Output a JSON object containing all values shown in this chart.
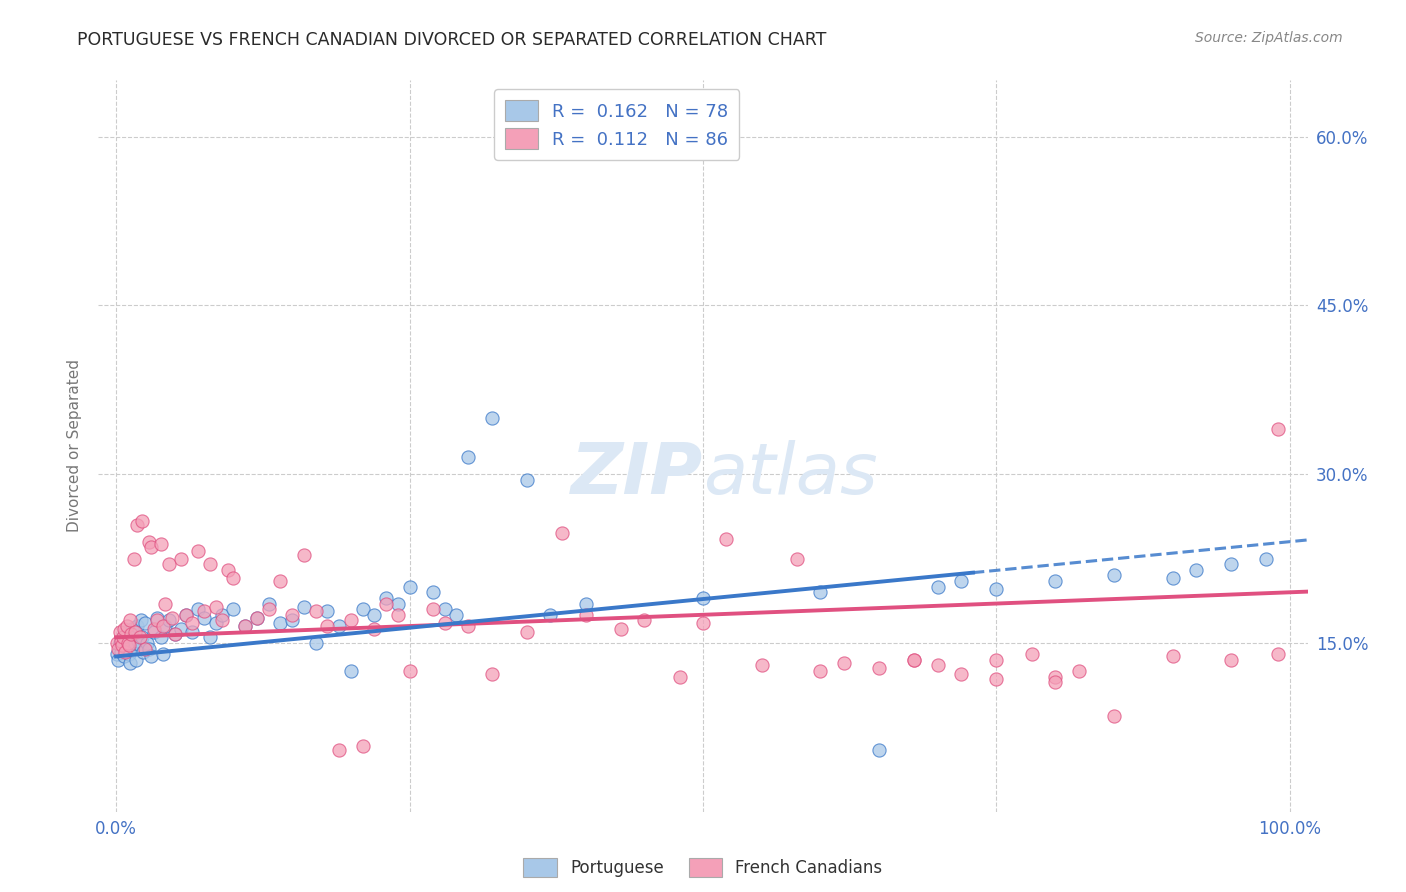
{
  "title": "PORTUGUESE VS FRENCH CANADIAN DIVORCED OR SEPARATED CORRELATION CHART",
  "source": "Source: ZipAtlas.com",
  "ylabel_label": "Divorced or Separated",
  "legend_label1": "Portuguese",
  "legend_label2": "French Canadians",
  "r1": 0.162,
  "n1": 78,
  "r2": 0.112,
  "n2": 86,
  "blue_color": "#a8c8e8",
  "pink_color": "#f4a0b8",
  "blue_line_color": "#3a78c9",
  "pink_line_color": "#e05080",
  "axis_label_color": "#4472c4",
  "watermark_color": "#dce8f5",
  "background_color": "#ffffff",
  "grid_color": "#cccccc",
  "blue_x": [
    0.1,
    0.2,
    0.3,
    0.4,
    0.5,
    0.6,
    0.7,
    0.8,
    0.9,
    1.0,
    1.1,
    1.2,
    1.3,
    1.4,
    1.5,
    1.6,
    1.7,
    1.8,
    1.9,
    2.0,
    2.1,
    2.2,
    2.3,
    2.5,
    2.6,
    2.8,
    3.0,
    3.2,
    3.5,
    3.8,
    4.0,
    4.2,
    4.5,
    5.0,
    5.5,
    6.0,
    6.5,
    7.0,
    7.5,
    8.0,
    8.5,
    9.0,
    10.0,
    11.0,
    12.0,
    13.0,
    14.0,
    15.0,
    16.0,
    17.0,
    18.0,
    19.0,
    20.0,
    21.0,
    22.0,
    23.0,
    24.0,
    25.0,
    27.0,
    28.0,
    29.0,
    30.0,
    32.0,
    35.0,
    37.0,
    40.0,
    50.0,
    60.0,
    65.0,
    70.0,
    72.0,
    75.0,
    80.0,
    85.0,
    90.0,
    92.0,
    95.0,
    98.0
  ],
  "blue_y": [
    14.0,
    13.5,
    15.0,
    14.2,
    14.8,
    15.5,
    13.8,
    16.0,
    14.5,
    15.2,
    14.0,
    13.2,
    15.8,
    16.2,
    14.5,
    15.0,
    13.5,
    16.5,
    15.2,
    14.8,
    17.0,
    15.5,
    14.2,
    16.8,
    15.0,
    14.5,
    13.8,
    16.0,
    17.2,
    15.5,
    14.0,
    16.5,
    17.0,
    15.8,
    16.2,
    17.5,
    16.0,
    18.0,
    17.2,
    15.5,
    16.8,
    17.5,
    18.0,
    16.5,
    17.2,
    18.5,
    16.8,
    17.0,
    18.2,
    15.0,
    17.8,
    16.5,
    12.5,
    18.0,
    17.5,
    19.0,
    18.5,
    20.0,
    19.5,
    18.0,
    17.5,
    31.5,
    35.0,
    29.5,
    17.5,
    18.5,
    19.0,
    19.5,
    5.5,
    20.0,
    20.5,
    19.8,
    20.5,
    21.0,
    20.8,
    21.5,
    22.0,
    22.5
  ],
  "pink_x": [
    0.1,
    0.2,
    0.3,
    0.4,
    0.5,
    0.6,
    0.7,
    0.8,
    0.9,
    1.0,
    1.1,
    1.2,
    1.3,
    1.5,
    1.6,
    1.8,
    2.0,
    2.2,
    2.5,
    2.8,
    3.0,
    3.2,
    3.5,
    3.8,
    4.0,
    4.2,
    4.5,
    4.8,
    5.0,
    5.5,
    6.0,
    6.5,
    7.0,
    7.5,
    8.0,
    8.5,
    9.0,
    9.5,
    10.0,
    11.0,
    12.0,
    13.0,
    14.0,
    15.0,
    16.0,
    17.0,
    18.0,
    19.0,
    20.0,
    21.0,
    22.0,
    23.0,
    24.0,
    25.0,
    27.0,
    28.0,
    30.0,
    32.0,
    35.0,
    38.0,
    40.0,
    43.0,
    45.0,
    48.0,
    50.0,
    55.0,
    58.0,
    60.0,
    65.0,
    68.0,
    70.0,
    72.0,
    75.0,
    78.0,
    80.0,
    82.0,
    85.0,
    90.0,
    95.0,
    99.0,
    52.0,
    62.0,
    68.0,
    75.0,
    80.0,
    99.0
  ],
  "pink_y": [
    15.0,
    14.5,
    16.0,
    15.2,
    14.8,
    15.5,
    16.2,
    14.2,
    16.5,
    15.0,
    14.8,
    17.0,
    15.8,
    22.5,
    16.0,
    25.5,
    15.5,
    25.8,
    14.5,
    24.0,
    23.5,
    16.2,
    17.0,
    23.8,
    16.5,
    18.5,
    22.0,
    17.2,
    15.8,
    22.5,
    17.5,
    16.8,
    23.2,
    17.8,
    22.0,
    18.2,
    17.0,
    21.5,
    20.8,
    16.5,
    17.2,
    18.0,
    20.5,
    17.5,
    22.8,
    17.8,
    16.5,
    5.5,
    17.0,
    5.8,
    16.2,
    18.5,
    17.5,
    12.5,
    18.0,
    16.8,
    16.5,
    12.2,
    16.0,
    24.8,
    17.5,
    16.2,
    17.0,
    12.0,
    16.8,
    13.0,
    22.5,
    12.5,
    12.8,
    13.5,
    13.0,
    12.2,
    13.5,
    14.0,
    12.0,
    12.5,
    8.5,
    13.8,
    13.5,
    14.0,
    24.2,
    13.2,
    13.5,
    11.8,
    11.5,
    34.0
  ]
}
